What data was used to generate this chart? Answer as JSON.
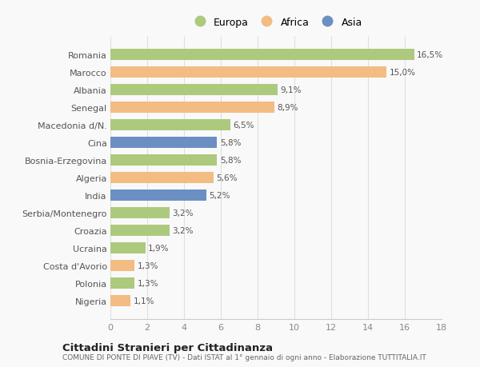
{
  "countries": [
    "Romania",
    "Marocco",
    "Albania",
    "Senegal",
    "Macedonia d/N.",
    "Cina",
    "Bosnia-Erzegovina",
    "Algeria",
    "India",
    "Serbia/Montenegro",
    "Croazia",
    "Ucraina",
    "Costa d'Avorio",
    "Polonia",
    "Nigeria"
  ],
  "values": [
    16.5,
    15.0,
    9.1,
    8.9,
    6.5,
    5.8,
    5.8,
    5.6,
    5.2,
    3.2,
    3.2,
    1.9,
    1.3,
    1.3,
    1.1
  ],
  "labels": [
    "16,5%",
    "15,0%",
    "9,1%",
    "8,9%",
    "6,5%",
    "5,8%",
    "5,8%",
    "5,6%",
    "5,2%",
    "3,2%",
    "3,2%",
    "1,9%",
    "1,3%",
    "1,3%",
    "1,1%"
  ],
  "continents": [
    "Europa",
    "Africa",
    "Europa",
    "Africa",
    "Europa",
    "Asia",
    "Europa",
    "Africa",
    "Asia",
    "Europa",
    "Europa",
    "Europa",
    "Africa",
    "Europa",
    "Africa"
  ],
  "colors": {
    "Europa": "#adc97e",
    "Africa": "#f2bc82",
    "Asia": "#6b8fc2"
  },
  "title": "Cittadini Stranieri per Cittadinanza",
  "subtitle": "COMUNE DI PONTE DI PIAVE (TV) - Dati ISTAT al 1° gennaio di ogni anno - Elaborazione TUTTITALIA.IT",
  "xlim": [
    0,
    18
  ],
  "xticks": [
    0,
    2,
    4,
    6,
    8,
    10,
    12,
    14,
    16,
    18
  ],
  "background_color": "#f9f9f9",
  "grid_color": "#e0e0e0",
  "bar_height": 0.65
}
